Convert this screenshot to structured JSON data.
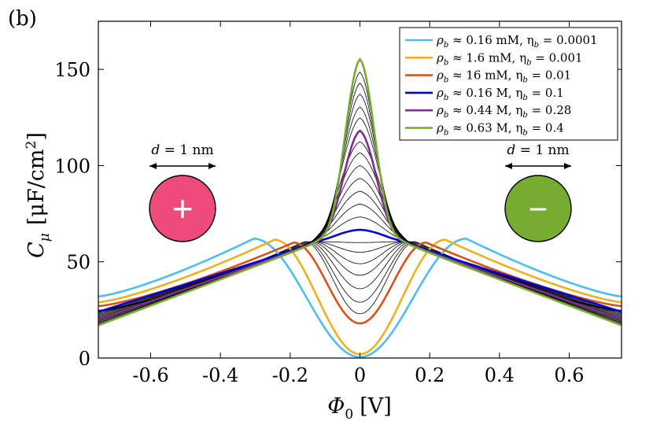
{
  "panel_label": "(b)",
  "chart_data": {
    "type": "line",
    "title": "",
    "xlabel": "Φ",
    "xlabel_sub": "0",
    "xlabel_unit": "[V]",
    "ylabel": "C",
    "ylabel_sub": "μ",
    "ylabel_unit": "[μF/cm",
    "ylabel_sup": "2",
    "ylabel_unit_close": "]",
    "xlim": [
      -0.75,
      0.75
    ],
    "ylim": [
      0,
      175
    ],
    "xticks": [
      -0.6,
      -0.4,
      -0.2,
      0,
      0.2,
      0.4,
      0.6
    ],
    "xtick_labels": [
      "-0.6",
      "-0.4",
      "-0.2",
      "0",
      "0.2",
      "0.4",
      "0.6"
    ],
    "yticks": [
      0,
      50,
      100,
      150
    ],
    "ytick_labels": [
      "0",
      "50",
      "100",
      "150"
    ],
    "legend_position": "top-right",
    "series": [
      {
        "name": "ρb ≈ 0.16 mM, ηb = 0.0001",
        "legend_text": "ρ",
        "legend_sub": "b",
        "legend_rest": " ≈ 0.16 mM, η",
        "legend_sub2": "b",
        "legend_end": " = 0.0001",
        "color": "#4dbeee",
        "peak_x": 0.305,
        "peak_y": 62,
        "center_y": 0.5,
        "edge_y": 32,
        "width": 0.095
      },
      {
        "name": "ρb ≈ 1.6 mM, ηb = 0.001",
        "legend_text": "ρ",
        "legend_sub": "b",
        "legend_rest": " ≈ 1.6 mM, η",
        "legend_sub2": "b",
        "legend_end": " = 0.001",
        "color": "#edb120",
        "peak_x": 0.245,
        "peak_y": 61.5,
        "center_y": 2,
        "edge_y": 29,
        "width": 0.08
      },
      {
        "name": "ρb ≈ 16 mM, ηb = 0.01",
        "legend_text": "ρ",
        "legend_sub": "b",
        "legend_rest": " ≈ 16 mM, η",
        "legend_sub2": "b",
        "legend_end": " = 0.01",
        "color": "#d95319",
        "peak_x": 0.19,
        "peak_y": 60,
        "center_y": 18,
        "edge_y": 27,
        "width": 0.072
      },
      {
        "name": "ρb ≈ 0.16 M, ηb = 0.1",
        "legend_text": "ρ",
        "legend_sub": "b",
        "legend_rest": " ≈ 0.16 M, η",
        "legend_sub2": "b",
        "legend_end": " = 0.1",
        "color": "#0000dd",
        "peak_x": 0.0,
        "peak_y": 67,
        "center_y": 67,
        "edge_y": 24,
        "width": 0.1
      },
      {
        "name": "ρb ≈ 0.44 M, ηb = 0.28",
        "legend_text": "ρ",
        "legend_sub": "b",
        "legend_rest": " ≈ 0.44 M, η",
        "legend_sub2": "b",
        "legend_end": " = 0.28",
        "color": "#7e2f8e",
        "peak_x": 0.0,
        "peak_y": 121,
        "center_y": 121,
        "edge_y": 20,
        "width": 0.055
      },
      {
        "name": "ρb ≈ 0.63 M, ηb = 0.4",
        "legend_text": "ρ",
        "legend_sub": "b",
        "legend_rest": " ≈ 0.63 M, η",
        "legend_sub2": "b",
        "legend_end": " = 0.4",
        "color": "#77ac30",
        "peak_x": 0.0,
        "peak_y": 160,
        "center_y": 160,
        "edge_y": 17,
        "width": 0.048
      }
    ],
    "thin_black_series_centers": [
      23,
      29,
      36,
      43,
      49,
      55,
      60,
      74,
      81,
      88,
      95,
      102,
      109,
      115,
      128,
      134,
      141,
      147,
      153
    ]
  },
  "annotations": {
    "left_ion": {
      "label": "d = 1 nm",
      "label_var": "d",
      "label_rest": " = 1 nm",
      "symbol": "+",
      "color": "#ee4a7c"
    },
    "right_ion": {
      "label": "d = 1 nm",
      "label_var": "d",
      "label_rest": " = 1 nm",
      "symbol": "−",
      "color": "#77ac30"
    }
  }
}
